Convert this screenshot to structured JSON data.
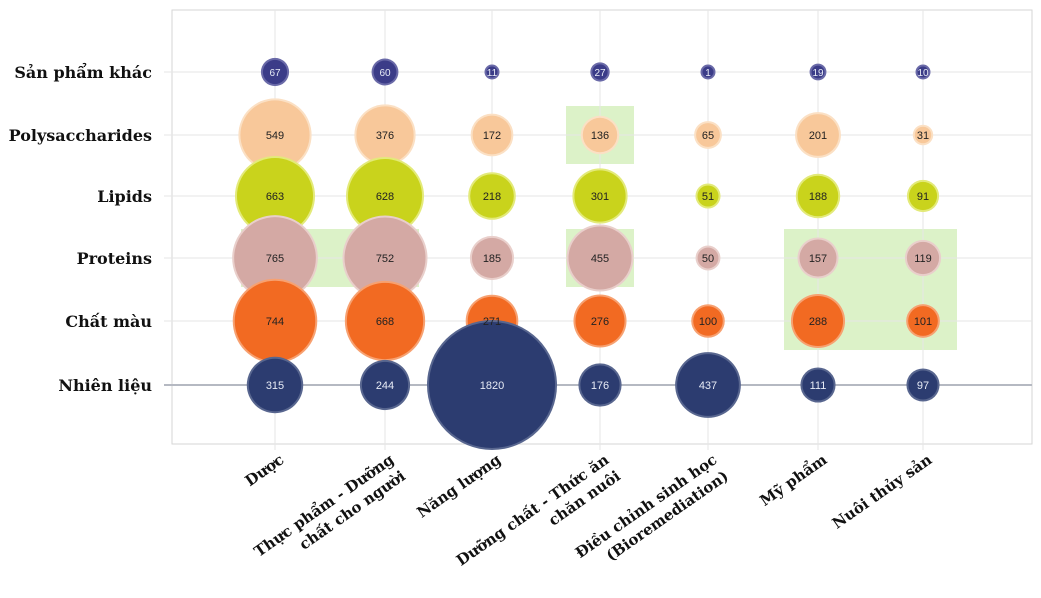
{
  "chart_data": {
    "type": "bubble",
    "rows": [
      "Sản phẩm khác",
      "Polysaccharides",
      "Lipids",
      "Proteins",
      "Chất màu",
      "Nhiên liệu"
    ],
    "columns": [
      [
        "Dược"
      ],
      [
        "Thực phẩm - Dưỡng",
        "chất cho người"
      ],
      [
        "Năng lượng"
      ],
      [
        "Dưỡng chất - Thức ăn",
        "chăn nuôi"
      ],
      [
        "Điều chỉnh sinh học",
        "(Bioremediation)"
      ],
      [
        "Mỹ phẩm"
      ],
      [
        "Nuôi thủy sản"
      ]
    ],
    "values": [
      [
        67,
        60,
        11,
        27,
        1,
        19,
        10
      ],
      [
        549,
        376,
        172,
        136,
        65,
        201,
        31
      ],
      [
        663,
        628,
        218,
        301,
        51,
        188,
        91
      ],
      [
        765,
        752,
        185,
        455,
        50,
        157,
        119
      ],
      [
        744,
        668,
        271,
        276,
        100,
        288,
        101
      ],
      [
        315,
        244,
        1820,
        176,
        437,
        111,
        97
      ]
    ],
    "row_colors": [
      "#3b3c88",
      "#f8c89a",
      "#c9d31c",
      "#d4a9a4",
      "#f26a22",
      "#2c3c70"
    ],
    "row_rim_colors": [
      "#6a6aa8",
      "#fbe0c4",
      "#e3ea7a",
      "#e9cfcb",
      "#f7a171",
      "#58668f"
    ],
    "highlight_color": "#dcf2c8",
    "highlights": [
      {
        "row": 1,
        "col_start": 3,
        "col_end": 3
      },
      {
        "row": 3,
        "col_start": 0,
        "col_end": 1
      },
      {
        "row": 3,
        "col_start": 3,
        "col_end": 3
      },
      {
        "row_start": 3,
        "row_end": 4,
        "col_start": 5,
        "col_end": 6
      }
    ],
    "grid": true
  }
}
